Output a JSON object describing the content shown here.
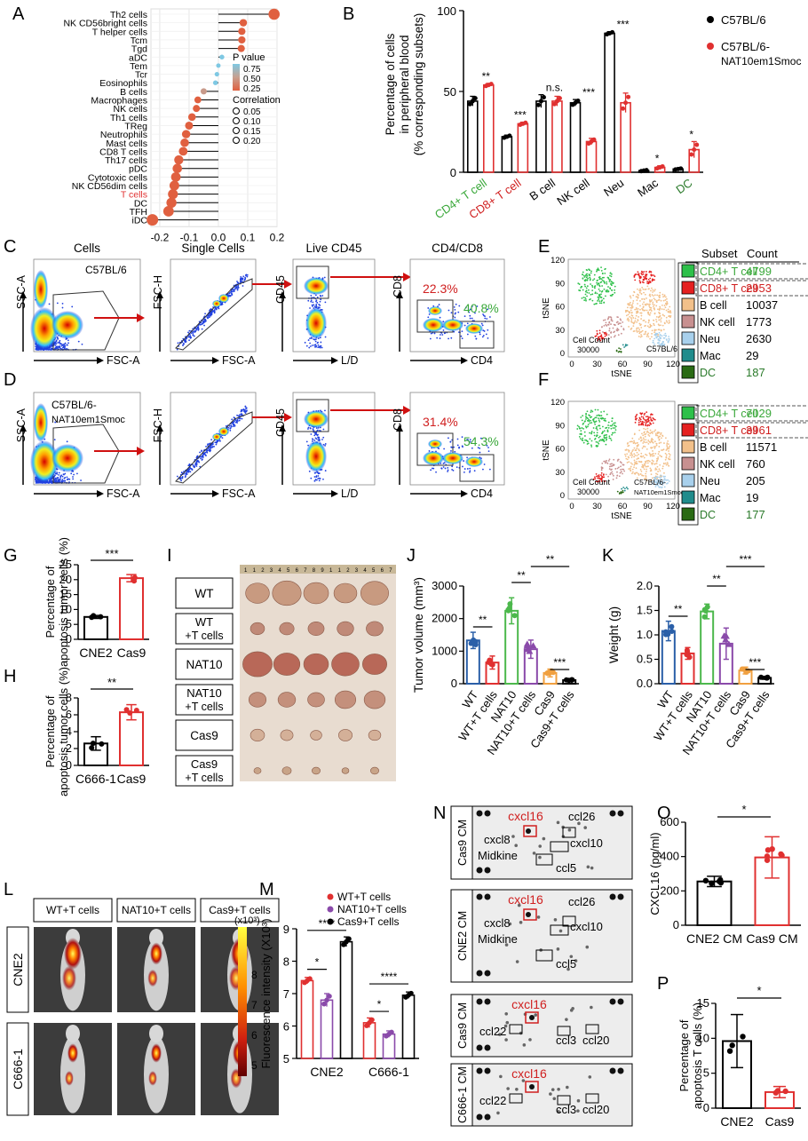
{
  "figure": {
    "panel_letters": [
      "A",
      "B",
      "C",
      "D",
      "E",
      "F",
      "G",
      "H",
      "I",
      "J",
      "K",
      "L",
      "M",
      "N",
      "O",
      "P"
    ]
  },
  "chart_data": [
    {
      "panel": "A",
      "type": "scatter",
      "categories": [
        "Th2 cells",
        "NK CD56bright cells",
        "T helper cells",
        "Tcm",
        "Tgd",
        "aDC",
        "Tem",
        "Tcr",
        "Eosinophils",
        "B cells",
        "Macrophages",
        "NK cells",
        "Th1 cells",
        "TReg",
        "Neutrophils",
        "Mast cells",
        "CD8 T cells",
        "Th17 cells",
        "pDC",
        "Cytotoxic cells",
        "NK CD56dim cells",
        "T cells",
        "DC",
        "TFH",
        "iDC"
      ],
      "highlighted_category": "T cells",
      "highlight_color": "#e03030",
      "values": [
        0.19,
        0.085,
        0.08,
        0.08,
        0.078,
        0.012,
        0.0,
        -0.005,
        -0.01,
        -0.05,
        -0.07,
        -0.075,
        -0.09,
        -0.1,
        -0.11,
        -0.115,
        -0.12,
        -0.135,
        -0.14,
        -0.145,
        -0.15,
        -0.155,
        -0.16,
        -0.17,
        -0.225
      ],
      "xticks": [
        "-0.2",
        "-0.1",
        "0.0",
        "0.1",
        "0.2"
      ],
      "xlim": [
        -0.23,
        0.2
      ],
      "legend": {
        "pvalue_title": "P value",
        "pvalue_labels": [
          "0.75",
          "0.50",
          "0.25"
        ],
        "corr_title": "Correlation",
        "corr_labels": [
          "0.05",
          "0.10",
          "0.15",
          "0.20"
        ]
      },
      "colors": {
        "low_p": "#e06040",
        "high_p": "#7ec8e3"
      }
    },
    {
      "panel": "B",
      "type": "bar",
      "ylabel": "Percentage of cells in peripheral blood (% corresponding subsets)",
      "ylabel_lines": [
        "Percentage of cells",
        "in peripheral blood",
        "(% corresponding subsets)"
      ],
      "ylim": [
        0,
        100
      ],
      "yticks": [
        "0",
        "50",
        "100"
      ],
      "categories": [
        "CD4+ T cell",
        "CD8+ T cell",
        "B cell",
        "NK cell",
        "Neu",
        "Mac",
        "DC"
      ],
      "category_colors": [
        "#3aa83a",
        "#d02020",
        "#000000",
        "#000000",
        "#000000",
        "#000000",
        "#2a7a2a"
      ],
      "series": [
        {
          "name": "C57BL/6",
          "values": [
            44,
            22,
            44,
            43,
            86,
            1,
            2
          ],
          "errors": [
            3,
            1,
            4,
            2,
            1,
            0.5,
            0.5
          ],
          "color": "#000000"
        },
        {
          "name": "C57BL/6-NAT10em1Smoc",
          "values": [
            54,
            30,
            44,
            19,
            43,
            3,
            14
          ],
          "errors": [
            1,
            1,
            3,
            2,
            6,
            1,
            5
          ],
          "color": "#e03030"
        }
      ],
      "significance": [
        "**",
        "***",
        "n.s.",
        "***",
        "***",
        "*",
        "*"
      ],
      "legend_items": [
        {
          "label": "C57BL/6"
        },
        {
          "label_lines": [
            "C57BL/6-",
            "NAT10em1Smoc"
          ]
        }
      ]
    },
    {
      "panel": "E",
      "type": "table",
      "x_title": "tSNE",
      "y_title": "tSNE",
      "xticks": [
        "0",
        "30",
        "60",
        "90",
        "120"
      ],
      "yticks": [
        "0",
        "30",
        "60",
        "90",
        "120"
      ],
      "cell_count_label": [
        "Cell Count",
        "30000"
      ],
      "strain_label": "C57BL/6",
      "columns": [
        "Subset",
        "Count"
      ],
      "rows": [
        {
          "subset": "CD4+ T cell",
          "count": "4799",
          "color": "#2ec04a"
        },
        {
          "subset": "CD8+ T cell",
          "count": "2953",
          "color": "#e52020"
        },
        {
          "subset": "B cell",
          "count": "10037",
          "color": "#f2c08a"
        },
        {
          "subset": "NK cell",
          "count": "1773",
          "color": "#c89090"
        },
        {
          "subset": "Neu",
          "count": "2630",
          "color": "#a8d0ec"
        },
        {
          "subset": "Mac",
          "count": "29",
          "color": "#208c8c"
        },
        {
          "subset": "DC",
          "count": "187",
          "color": "#2a6a14"
        }
      ]
    },
    {
      "panel": "F",
      "type": "table",
      "x_title": "tSNE",
      "y_title": "tSNE",
      "xticks": [
        "0",
        "30",
        "60",
        "90",
        "120"
      ],
      "yticks": [
        "0",
        "30",
        "60",
        "90",
        "120"
      ],
      "cell_count_label": [
        "Cell Count",
        "30000"
      ],
      "strain_label": [
        "C57BL/6-",
        "NAT10em1Smoc"
      ],
      "rows": [
        {
          "subset": "CD4+ T cell",
          "count": "7029",
          "color": "#2ec04a"
        },
        {
          "subset": "CD8+ T cell",
          "count": "3961",
          "color": "#e52020"
        },
        {
          "subset": "B cell",
          "count": "11571",
          "color": "#f2c08a"
        },
        {
          "subset": "NK cell",
          "count": "760",
          "color": "#c89090"
        },
        {
          "subset": "Neu",
          "count": "205",
          "color": "#a8d0ec"
        },
        {
          "subset": "Mac",
          "count": "19",
          "color": "#208c8c"
        },
        {
          "subset": "DC",
          "count": "177",
          "color": "#2a6a14"
        }
      ]
    },
    {
      "panel": "G",
      "type": "bar",
      "ylabel": "Percentage of apoptosis tumor cells (%)",
      "ylabel_lines": [
        "Percentage of",
        "apoptosis tumor cells (%)"
      ],
      "ylim": [
        0,
        25
      ],
      "yticks": [
        "0",
        "5",
        "10",
        "15",
        "20",
        "25"
      ],
      "categories": [
        "CNE2",
        "Cas9"
      ],
      "values": [
        7.5,
        20.5
      ],
      "errors": [
        0.5,
        1.2
      ],
      "colors": [
        "#000000",
        "#e03030"
      ],
      "significance": "***"
    },
    {
      "panel": "H",
      "type": "bar",
      "ylabel": "Percentage of apoptosis tumor cells (%)",
      "ylabel_lines": [
        "Percentage of",
        "apoptosis tumor cells (%)"
      ],
      "ylim": [
        0,
        8
      ],
      "yticks": [
        "0",
        "2",
        "4",
        "6",
        "8"
      ],
      "categories": [
        "C666-1",
        "Cas9"
      ],
      "values": [
        2.6,
        6.3
      ],
      "errors": [
        0.8,
        0.9
      ],
      "colors": [
        "#000000",
        "#e03030"
      ],
      "significance": "**"
    },
    {
      "panel": "J",
      "type": "bar",
      "ylabel": "Tumor volume (mm³)",
      "ylim": [
        0,
        3000
      ],
      "yticks": [
        "0",
        "1000",
        "2000",
        "3000"
      ],
      "categories": [
        "WT",
        "WT+T cells",
        "NAT10",
        "NAT10+T cells",
        "Cas9",
        "Cas9+T cells"
      ],
      "values": [
        1330,
        650,
        2240,
        1060,
        330,
        110
      ],
      "errors": [
        250,
        200,
        400,
        280,
        120,
        40
      ],
      "colors": [
        "#2a5fa8",
        "#e03030",
        "#4cb84c",
        "#8a4aaa",
        "#f0a040",
        "#000000"
      ],
      "significance": [
        {
          "pair": "WT vs WT+T cells",
          "label": "**"
        },
        {
          "pair": "NAT10 vs NAT10+T cells",
          "label": "**"
        },
        {
          "pair": "Cas9 vs Cas9+T cells",
          "label": "***"
        },
        {
          "pair": "NAT10+T cells vs Cas9+T cells",
          "label": "**"
        }
      ]
    },
    {
      "panel": "K",
      "type": "bar",
      "ylabel": "Weight (g)",
      "ylim": [
        0,
        2.0
      ],
      "yticks": [
        "0.0",
        "0.5",
        "1.0",
        "1.5",
        "2.0"
      ],
      "categories": [
        "WT",
        "WT+T cells",
        "NAT10",
        "NAT10+T cells",
        "Cas9",
        "Cas9+T cells"
      ],
      "values": [
        1.08,
        0.62,
        1.48,
        0.82,
        0.27,
        0.12
      ],
      "errors": [
        0.2,
        0.12,
        0.15,
        0.32,
        0.07,
        0.03
      ],
      "colors": [
        "#2a5fa8",
        "#e03030",
        "#4cb84c",
        "#8a4aaa",
        "#f0a040",
        "#000000"
      ],
      "significance": [
        {
          "pair": "WT vs WT+T cells",
          "label": "**"
        },
        {
          "pair": "NAT10 vs NAT10+T cells",
          "label": "**"
        },
        {
          "pair": "Cas9 vs Cas9+T cells",
          "label": "***"
        },
        {
          "pair": "NAT10+T cells vs Cas9+T cells",
          "label": "***"
        }
      ]
    },
    {
      "panel": "M",
      "type": "bar",
      "ylabel": "Fluorescence intensity (X10³)",
      "ylim": [
        5,
        9
      ],
      "yticks": [
        "5",
        "6",
        "7",
        "8",
        "9"
      ],
      "categories": [
        "CNE2",
        "C666-1"
      ],
      "series": [
        {
          "name": "WT+T cells",
          "values": [
            7.4,
            6.1
          ],
          "errors": [
            0.1,
            0.15
          ],
          "color": "#e03030"
        },
        {
          "name": "NAT10+T cells",
          "values": [
            6.8,
            5.75
          ],
          "errors": [
            0.2,
            0.1
          ],
          "color": "#8a4aaa"
        },
        {
          "name": "Cas9+T cells",
          "values": [
            8.6,
            6.95
          ],
          "errors": [
            0.15,
            0.1
          ],
          "color": "#000000"
        }
      ],
      "significance": [
        "*",
        "****",
        "*",
        "****"
      ]
    },
    {
      "panel": "O",
      "type": "bar",
      "ylabel": "CXCL16 (pg/ml)",
      "ylim": [
        0,
        600
      ],
      "yticks": [
        "0",
        "200",
        "400",
        "600"
      ],
      "categories": [
        "CNE2 CM",
        "Cas9 CM"
      ],
      "values": [
        255,
        395
      ],
      "errors": [
        30,
        120
      ],
      "colors": [
        "#000000",
        "#e03030"
      ],
      "significance": "*"
    },
    {
      "panel": "P",
      "type": "bar",
      "ylabel": "Percentage of apoptosis T cells (%)",
      "ylabel_lines": [
        "Percentage of",
        "apoptosis T cells (%)"
      ],
      "ylim": [
        0,
        15
      ],
      "yticks": [
        "0",
        "5",
        "10",
        "15"
      ],
      "categories": [
        "CNE2",
        "Cas9"
      ],
      "values": [
        9.6,
        2.3
      ],
      "errors": [
        3.8,
        0.8
      ],
      "colors": [
        "#000000",
        "#e03030"
      ],
      "significance": "*"
    }
  ],
  "flow": {
    "gate_titles": [
      "Cells",
      "Single Cells",
      "Live CD45",
      "CD4/CD8"
    ],
    "c_axes": [
      {
        "y": "SSC-A",
        "x": "FSC-A"
      },
      {
        "y": "FSC-H",
        "x": "FSC-A"
      },
      {
        "y": "CD45",
        "x": "L/D"
      },
      {
        "y": "CD8",
        "x": "CD4"
      }
    ],
    "c_strain": "C57BL/6",
    "c_cd8": "22.3%",
    "c_cd4": "40.8%",
    "d_strain": [
      "C57BL/6-",
      "NAT10em1Smoc"
    ],
    "d_cd8": "31.4%",
    "d_cd4": "54.3%"
  },
  "tumor_photo": {
    "groups": [
      [
        "WT"
      ],
      [
        "WT",
        "+T cells"
      ],
      [
        "NAT10"
      ],
      [
        "NAT10",
        "+T cells"
      ],
      [
        "Cas9"
      ],
      [
        "Cas9",
        "+T cells"
      ]
    ]
  },
  "imaging": {
    "groups": [
      "WT+T cells",
      "NAT10+T cells",
      "Cas9+T cells"
    ],
    "rows": [
      "CNE2",
      "C666-1"
    ],
    "scale_unit": "(x10³)",
    "scale_ticks": [
      "8",
      "7",
      "6",
      "5"
    ]
  },
  "arrays": {
    "rows": [
      "Cas9 CM",
      "CNE2 CM",
      "Cas9 CM",
      "C666-1 CM"
    ],
    "top_labels": {
      "red": "cxcl16",
      "black": [
        "ccl26",
        "cxcl8",
        "Midkine",
        "cxcl10",
        "ccl5"
      ]
    },
    "bottom_labels": {
      "red": "cxcl16",
      "black": [
        "ccl22",
        "ccl3",
        "ccl20"
      ]
    }
  }
}
